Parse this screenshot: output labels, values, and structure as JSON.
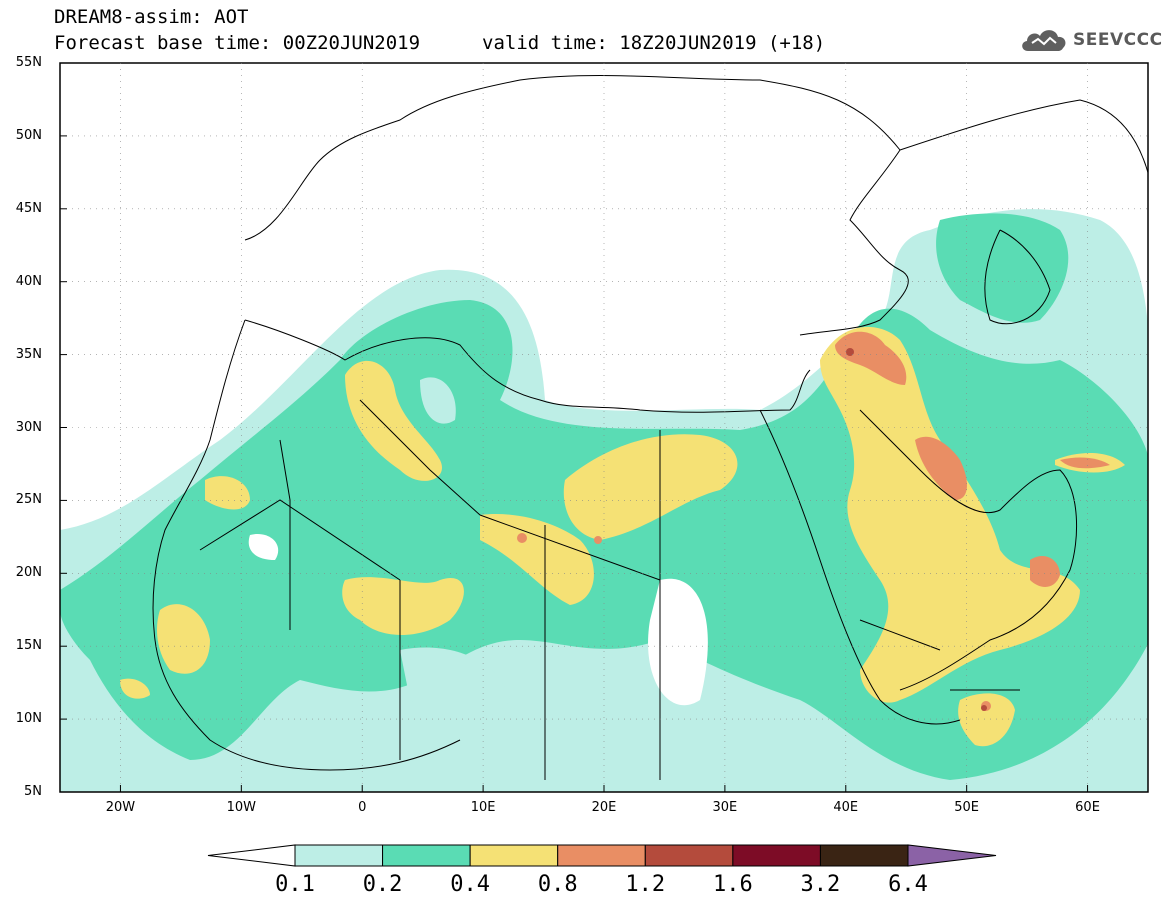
{
  "header": {
    "title_line1": "DREAM8-assim: AOT",
    "title_line2": "Forecast base time: 00Z20JUN2019",
    "valid_time": "valid time: 18Z20JUN2019 (+18)",
    "logo_text": "SEEVCCC",
    "logo_icon": "cloud-icon"
  },
  "map": {
    "lat_labels": [
      "55N",
      "50N",
      "45N",
      "40N",
      "35N",
      "30N",
      "25N",
      "20N",
      "15N",
      "10N",
      "5N"
    ],
    "lon_labels": [
      "20W",
      "10W",
      "0",
      "10E",
      "20E",
      "30E",
      "40E",
      "50E",
      "60E"
    ],
    "lat_range": [
      5,
      55
    ],
    "lon_range": [
      -25,
      65
    ]
  },
  "colorbar": {
    "levels": [
      "0.1",
      "0.2",
      "0.4",
      "0.8",
      "1.2",
      "1.6",
      "3.2",
      "6.4"
    ],
    "colors": [
      "#ffffff",
      "#bdeee6",
      "#5adcb4",
      "#f5e175",
      "#e98e64",
      "#b44b3c",
      "#7d0c26",
      "#3a2414",
      "#8b62a6"
    ]
  }
}
